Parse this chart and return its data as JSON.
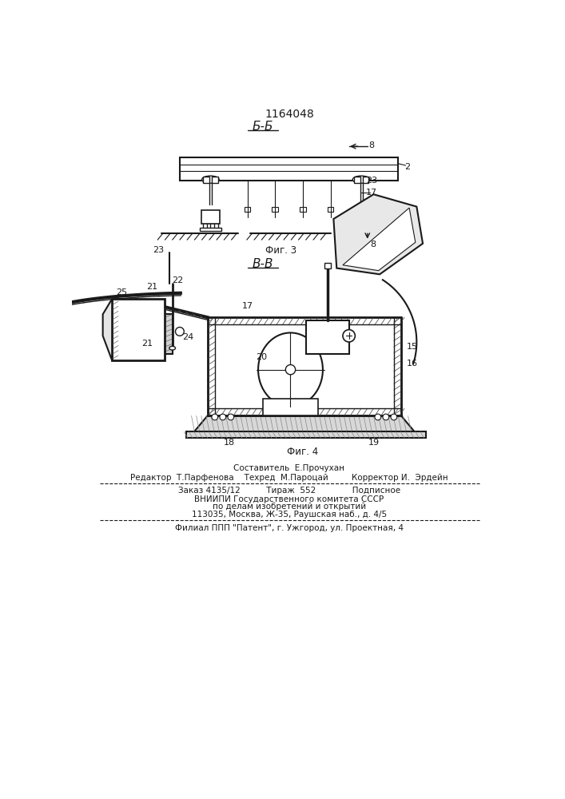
{
  "patent_number": "1164048",
  "fig3_label": "Б-Б",
  "fig4_label": "В-В",
  "fig3_caption": "Фиг. 3",
  "fig4_caption": "Фиг. 4",
  "footer_line1": "Составитель  Е.Прочухан",
  "footer_line2": "Редактор  Т.Парфенова    Техред  М.Пароцай         Корректор И.  Эрдейн",
  "footer_line3": "Заказ 4135/12          Тираж  552              Подписное",
  "footer_line4": "ВНИИПИ Государственного комитета СССР",
  "footer_line5": "по делам изобретений и открытий",
  "footer_line6": "113035, Москва, Ж-35, Раушская наб., д. 4/5",
  "footer_line7": "Филиал ППП \"Патент\", г. Ужгород, ул. Проектная, 4",
  "line_color": "#1a1a1a",
  "text_color": "#1a1a1a"
}
